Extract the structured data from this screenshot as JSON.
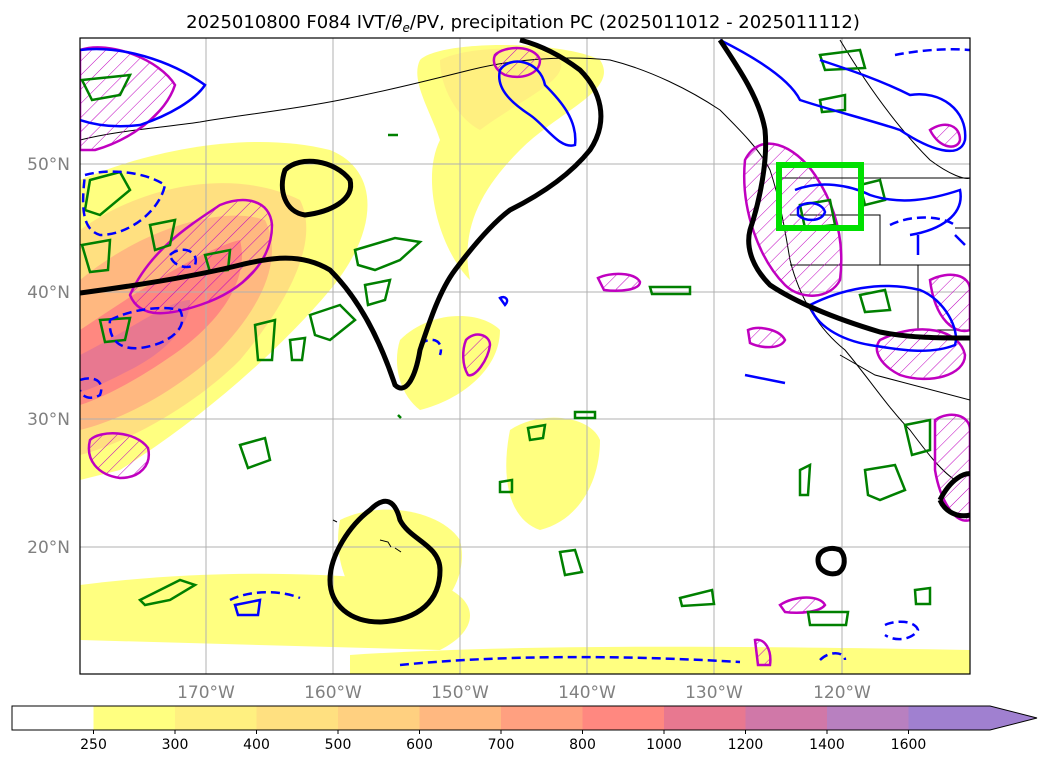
{
  "title": {
    "main": "2025010800 F084 IVT/",
    "theta": "θ",
    "sub_e": "e",
    "rest": "/PV, precipitation PC (2025011012 - 2025011112)"
  },
  "lat_labels": [
    "50°N",
    "40°N",
    "30°N",
    "20°N"
  ],
  "lon_labels": [
    "170°W",
    "160°W",
    "150°W",
    "140°W",
    "130°W",
    "120°W"
  ],
  "colorbar": {
    "ticks": [
      "250",
      "300",
      "400",
      "500",
      "600",
      "700",
      "800",
      "1000",
      "1200",
      "1400",
      "1600"
    ],
    "colors": [
      "#ffffff",
      "#ffff80",
      "#fff080",
      "#ffe080",
      "#ffd080",
      "#ffb880",
      "#ffa080",
      "#ff8880",
      "#e87890",
      "#d078a8",
      "#b880c0",
      "#a080d0"
    ],
    "extend": "max"
  },
  "colors": {
    "contour_black": "#000000",
    "contour_green": "#008000",
    "contour_blue": "#0000ff",
    "contour_magenta": "#c000c0",
    "box": "#00e000",
    "grid": "#b0b0b0"
  }
}
